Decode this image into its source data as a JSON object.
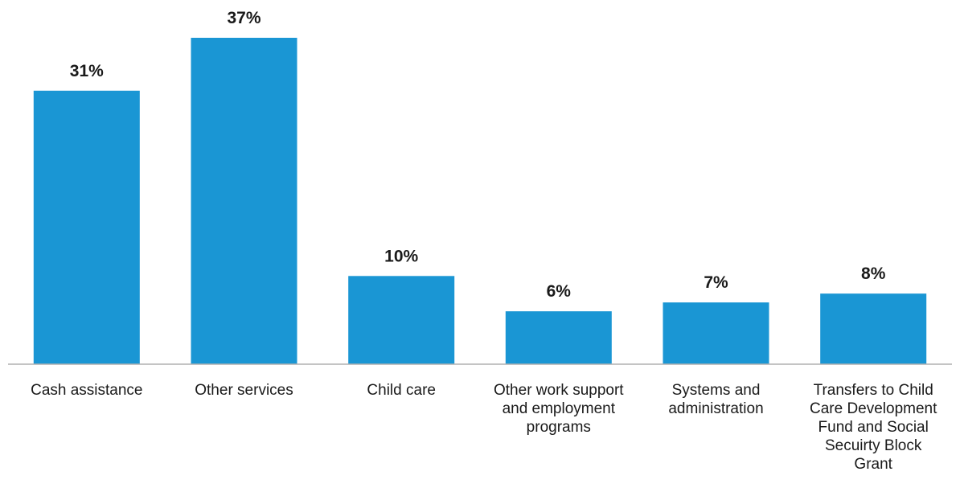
{
  "chart_data": {
    "type": "bar",
    "categories": [
      [
        "Cash assistance"
      ],
      [
        "Other services"
      ],
      [
        "Child care"
      ],
      [
        "Other work support",
        "and employment",
        "programs"
      ],
      [
        "Systems and",
        "administration"
      ],
      [
        "Transfers to Child",
        "Care Development",
        "Fund and Social",
        "Secuirty Block",
        "Grant"
      ]
    ],
    "values": [
      31,
      37,
      10,
      6,
      7,
      8
    ],
    "data_labels": [
      "31%",
      "37%",
      "10%",
      "6%",
      "7%",
      "8%"
    ],
    "title": "",
    "xlabel": "",
    "ylabel": "",
    "ylim": [
      0,
      37
    ],
    "grid": false,
    "colors": {
      "bar": "#1a96d4",
      "axis": "#b0b0b0",
      "text": "#1a1a1a"
    }
  }
}
